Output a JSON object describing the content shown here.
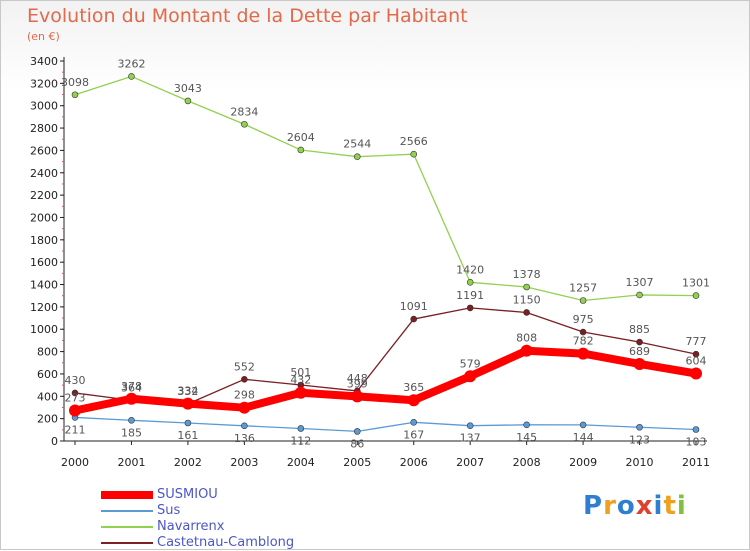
{
  "header": {
    "title": "Evolution du Montant de la Dette par Habitant",
    "unit": "(en €)"
  },
  "logo": {
    "text": "Proxiti",
    "colors": [
      "#2f7fd0",
      "#f0a020",
      "#2f7fd0",
      "#e04030",
      "#2f7fd0",
      "#f0a020",
      "#80c040"
    ]
  },
  "chart_data": {
    "type": "line",
    "title": "Evolution du Montant de la Dette par Habitant",
    "subtitle": "(en €)",
    "xlabel": "",
    "ylabel": "",
    "x": [
      "2000",
      "2001",
      "2002",
      "2003",
      "2004",
      "2005",
      "2006",
      "2007",
      "2008",
      "2009",
      "2010",
      "2011"
    ],
    "ylim": [
      0,
      3400
    ],
    "yticks": [
      0,
      200,
      400,
      600,
      800,
      1000,
      1200,
      1400,
      1600,
      1800,
      2000,
      2200,
      2400,
      2600,
      2800,
      3000,
      3200,
      3400
    ],
    "grid": false,
    "legend_position": "bottom-left",
    "series": [
      {
        "name": "Sus",
        "color": "#5b9bd5",
        "values": [
          211,
          185,
          161,
          136,
          112,
          86,
          167,
          137,
          145,
          144,
          123,
          103
        ]
      },
      {
        "name": "Navarrenx",
        "color": "#92d050",
        "values": [
          3098,
          3262,
          3043,
          2834,
          2604,
          2544,
          2566,
          1420,
          1378,
          1257,
          1307,
          1301
        ]
      },
      {
        "name": "Castetnau-Camblong",
        "color": "#7b1f24",
        "values": [
          430,
          364,
          332,
          552,
          501,
          448,
          1091,
          1191,
          1150,
          975,
          885,
          777
        ]
      },
      {
        "name": "SUSMIOU",
        "color": "#ff0000",
        "values": [
          273,
          378,
          334,
          298,
          432,
          399,
          365,
          579,
          808,
          782,
          689,
          604
        ]
      }
    ]
  }
}
